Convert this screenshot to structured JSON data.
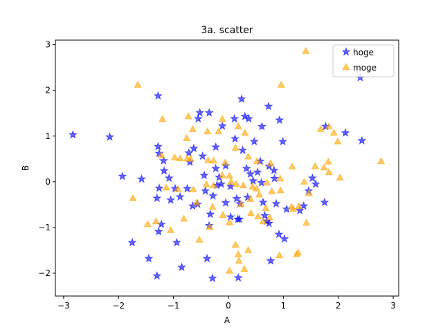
{
  "chart_data": {
    "type": "scatter",
    "title": "3a. scatter",
    "xlabel": "A",
    "ylabel": "B",
    "xlim": [
      -3.15,
      3.1
    ],
    "ylim": [
      -2.5,
      3.1
    ],
    "xticks": [
      -3,
      -2,
      -1,
      0,
      1,
      2,
      3
    ],
    "yticks": [
      -2,
      -1,
      0,
      1,
      2,
      3
    ],
    "grid": false,
    "legend_position": "top-right",
    "series": [
      {
        "name": "hoge",
        "marker": "star",
        "color": "#0000ff",
        "alpha": 0.6,
        "points": [
          [
            -2.83,
            1.03
          ],
          [
            -2.16,
            0.98
          ],
          [
            -1.93,
            0.12
          ],
          [
            -1.58,
            0.06
          ],
          [
            -1.75,
            -1.33
          ],
          [
            -1.45,
            -1.68
          ],
          [
            -1.28,
            1.88
          ],
          [
            -1.28,
            0.77
          ],
          [
            -1.26,
            0.62
          ],
          [
            -1.18,
            0.46
          ],
          [
            -1.17,
            0.24
          ],
          [
            -1.08,
            0.08
          ],
          [
            -1.26,
            -0.14
          ],
          [
            -1.3,
            -0.36
          ],
          [
            -1.22,
            -0.93
          ],
          [
            -1.27,
            -1.09
          ],
          [
            -1.3,
            -2.06
          ],
          [
            -1.05,
            -0.4
          ],
          [
            -0.97,
            -0.15
          ],
          [
            -0.94,
            -1.33
          ],
          [
            -0.88,
            -0.33
          ],
          [
            -0.85,
            -1.87
          ],
          [
            -0.75,
            -0.15
          ],
          [
            -0.72,
            0.63
          ],
          [
            -0.7,
            0.43
          ],
          [
            -0.63,
            0.73
          ],
          [
            -0.65,
            -0.53
          ],
          [
            -0.56,
            -0.49
          ],
          [
            -0.55,
            1.38
          ],
          [
            -0.52,
            1.51
          ],
          [
            -0.47,
            0.56
          ],
          [
            -0.44,
            0.14
          ],
          [
            -0.42,
            -0.2
          ],
          [
            -0.39,
            -1.68
          ],
          [
            -0.35,
            1.51
          ],
          [
            -0.35,
            -0.96
          ],
          [
            -0.33,
            -0.71
          ],
          [
            -0.28,
            -0.31
          ],
          [
            -0.29,
            -2.11
          ],
          [
            -0.23,
            0.76
          ],
          [
            -0.23,
            0.29
          ],
          [
            -0.21,
            -0.08
          ],
          [
            -0.17,
            0.1
          ],
          [
            -0.13,
            -0.05
          ],
          [
            -0.11,
            1.22
          ],
          [
            -0.05,
            0.35
          ],
          [
            -0.05,
            -0.46
          ],
          [
            0.04,
            -0.1
          ],
          [
            0.04,
            -0.77
          ],
          [
            0.11,
            1.38
          ],
          [
            0.12,
            0.94
          ],
          [
            0.15,
            -0.37
          ],
          [
            0.17,
            -0.82
          ],
          [
            0.2,
            -0.82
          ],
          [
            0.21,
            -0.48
          ],
          [
            0.24,
            1.81
          ],
          [
            0.18,
            -2.1
          ],
          [
            0.26,
            0.69
          ],
          [
            0.3,
            1.43
          ],
          [
            0.33,
            0.29
          ],
          [
            0.35,
            -0.34
          ],
          [
            0.37,
            1.38
          ],
          [
            0.4,
            0.17
          ],
          [
            0.45,
            0.02
          ],
          [
            0.47,
            0.88
          ],
          [
            0.53,
            0.21
          ],
          [
            0.58,
            0.45
          ],
          [
            0.61,
            1.21
          ],
          [
            0.6,
            -0.02
          ],
          [
            0.63,
            -0.45
          ],
          [
            0.66,
            -0.74
          ],
          [
            0.7,
            -0.86
          ],
          [
            0.74,
            -0.91
          ],
          [
            0.77,
            -1.73
          ],
          [
            0.74,
            0.34
          ],
          [
            0.83,
            0.25
          ],
          [
            0.84,
            0.07
          ],
          [
            0.87,
            -0.48
          ],
          [
            0.92,
            -1.15
          ],
          [
            0.93,
            1.35
          ],
          [
            0.99,
            0.88
          ],
          [
            1.02,
            -1.25
          ],
          [
            1.06,
            -0.6
          ],
          [
            1.3,
            -0.63
          ],
          [
            1.53,
            0.08
          ],
          [
            1.46,
            -0.2
          ],
          [
            1.37,
            -0.53
          ],
          [
            1.59,
            -0.05
          ],
          [
            1.75,
            -0.45
          ],
          [
            1.77,
            1.21
          ],
          [
            2.13,
            1.07
          ],
          [
            2.43,
            0.9
          ],
          [
            0.73,
            1.65
          ],
          [
            2.4,
            2.28
          ]
        ]
      },
      {
        "name": "moge",
        "marker": "triangle",
        "color": "#ffa500",
        "alpha": 0.6,
        "points": [
          [
            1.41,
            2.86
          ],
          [
            -1.65,
            2.12
          ],
          [
            0.96,
            2.12
          ],
          [
            -1.2,
            1.37
          ],
          [
            -0.73,
            1.43
          ],
          [
            -0.11,
            1.37
          ],
          [
            0.18,
            1.21
          ],
          [
            -0.65,
            1.15
          ],
          [
            -0.38,
            1.1
          ],
          [
            -0.18,
            1.1
          ],
          [
            0.3,
            1.07
          ],
          [
            1.68,
            1.15
          ],
          [
            1.83,
            1.21
          ],
          [
            1.92,
            1.07
          ],
          [
            1.99,
            0.88
          ],
          [
            -1.22,
            0.58
          ],
          [
            -0.98,
            0.53
          ],
          [
            -0.88,
            0.51
          ],
          [
            -0.75,
            0.51
          ],
          [
            -0.69,
            0.5
          ],
          [
            -0.76,
            0.95
          ],
          [
            -0.37,
            0.47
          ],
          [
            -0.27,
            0.46
          ],
          [
            -0.06,
            0.42
          ],
          [
            0.13,
            0.74
          ],
          [
            0.36,
            0.55
          ],
          [
            0.52,
            0.45
          ],
          [
            0.77,
            0.4
          ],
          [
            0.94,
            0.07
          ],
          [
            1.16,
            0.33
          ],
          [
            1.58,
            0.34
          ],
          [
            1.74,
            0.31
          ],
          [
            1.82,
            0.44
          ],
          [
            1.83,
            0.21
          ],
          [
            2.03,
            0.09
          ],
          [
            2.78,
            0.45
          ],
          [
            -1.13,
            -0.13
          ],
          [
            -0.92,
            -0.16
          ],
          [
            -0.64,
            -0.17
          ],
          [
            -0.4,
            -0.06
          ],
          [
            -0.27,
            -0.08
          ],
          [
            -0.11,
            0.14
          ],
          [
            0.02,
            0.13
          ],
          [
            0.14,
            -0.05
          ],
          [
            0.27,
            -0.08
          ],
          [
            0.44,
            -0.11
          ],
          [
            0.51,
            -0.15
          ],
          [
            0.56,
            -0.28
          ],
          [
            0.7,
            -0.02
          ],
          [
            0.79,
            -0.21
          ],
          [
            0.95,
            -0.19
          ],
          [
            1.15,
            -0.55
          ],
          [
            1.28,
            -0.54
          ],
          [
            1.38,
            0.0
          ],
          [
            1.47,
            -0.25
          ],
          [
            -1.74,
            -0.36
          ],
          [
            -1.47,
            -0.93
          ],
          [
            -1.32,
            -0.87
          ],
          [
            -0.81,
            -0.81
          ],
          [
            -0.58,
            -0.46
          ],
          [
            -0.29,
            -0.55
          ],
          [
            -0.1,
            -0.73
          ],
          [
            0.02,
            -0.89
          ],
          [
            0.23,
            -0.49
          ],
          [
            0.41,
            -0.69
          ],
          [
            0.54,
            -0.76
          ],
          [
            0.63,
            -0.87
          ],
          [
            0.68,
            -0.58
          ],
          [
            0.75,
            -0.78
          ],
          [
            1.18,
            -0.6
          ],
          [
            1.42,
            -0.9
          ],
          [
            -1.05,
            -1.06
          ],
          [
            -0.53,
            -1.27
          ],
          [
            -0.34,
            -0.99
          ],
          [
            0.13,
            -1.38
          ],
          [
            0.18,
            -1.59
          ],
          [
            0.36,
            -1.5
          ],
          [
            0.93,
            -1.61
          ],
          [
            1.27,
            -1.55
          ],
          [
            1.24,
            -1.59
          ],
          [
            0.02,
            -1.95
          ],
          [
            0.29,
            -1.91
          ],
          [
            0.19,
            -1.73
          ],
          [
            0.4,
            -0.38
          ],
          [
            0.05,
            0.0
          ]
        ]
      }
    ]
  }
}
